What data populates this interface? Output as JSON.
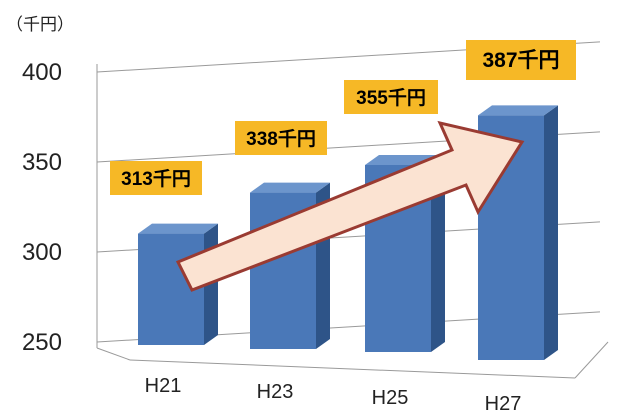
{
  "chart_data": {
    "type": "bar",
    "categories": [
      "H21",
      "H23",
      "H25",
      "H27"
    ],
    "values": [
      313,
      338,
      355,
      387
    ],
    "data_labels": [
      "313千円",
      "338千円",
      "355千円",
      "387千円"
    ],
    "ylabel": "（千円）",
    "ylim": [
      250,
      400
    ],
    "yticks": [
      250,
      300,
      350,
      400
    ],
    "grid": true,
    "style": "3d-bar",
    "annotation": "up-right trend arrow",
    "colors": {
      "bar_front": "#4a78b8",
      "bar_side": "#2e5488",
      "bar_top": "#6c95cc",
      "label_bg": "#f6b826",
      "arrow_fill": "#fbe3d2",
      "arrow_stroke": "#9a3b32",
      "grid": "#9a9a9a"
    }
  }
}
